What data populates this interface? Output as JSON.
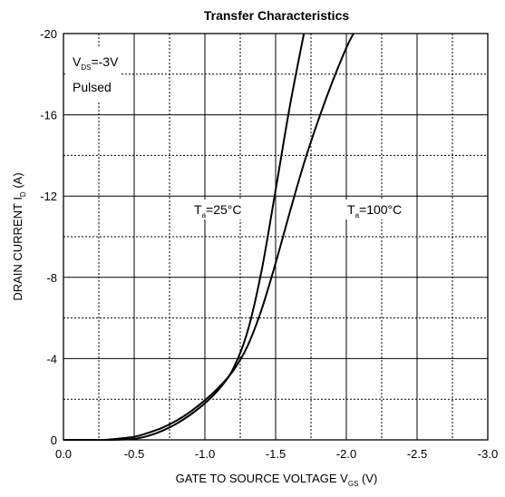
{
  "chart_data": {
    "type": "line",
    "title": "Transfer Characteristics",
    "xlabel": {
      "main": "GATE TO SOURCE VOLTAGE V",
      "sub": "GS",
      "unit": " (V)"
    },
    "ylabel": {
      "main": "DRAIN CURRENT I",
      "sub": "D",
      "unit": " (A)"
    },
    "xlim": [
      0,
      -3.0
    ],
    "ylim": [
      0,
      -20
    ],
    "x_ticks": [
      "0.0",
      "-0.5",
      "-1.0",
      "-1.5",
      "-2.0",
      "-2.5",
      "-3.0"
    ],
    "y_ticks": [
      "0",
      "-4",
      "-8",
      "-12",
      "-16",
      "-20"
    ],
    "grid": "major solid, minor dotted",
    "conditions": {
      "line1_main": "V",
      "line1_sub": "DS",
      "line1_value": "=-3V",
      "line2": "Pulsed"
    },
    "series": [
      {
        "name": "Ta=25°C",
        "label_main": "T",
        "label_sub": "a",
        "label_value": "=25°C",
        "x": [
          -0.35,
          -0.5,
          -0.6,
          -0.7,
          -0.8,
          -0.9,
          -1.0,
          -1.1,
          -1.2,
          -1.3,
          -1.4,
          -1.5,
          -1.6,
          -1.7
        ],
        "y": [
          0,
          -0.05,
          -0.2,
          -0.45,
          -0.8,
          -1.25,
          -1.8,
          -2.5,
          -3.5,
          -5.3,
          -8.3,
          -12.3,
          -16.4,
          -20
        ]
      },
      {
        "name": "Ta=100°C",
        "label_main": "T",
        "label_sub": "a",
        "label_value": "=100°C",
        "x": [
          -0.3,
          -0.5,
          -0.6,
          -0.7,
          -0.8,
          -0.9,
          -1.0,
          -1.1,
          -1.2,
          -1.3,
          -1.4,
          -1.5,
          -1.6,
          -1.7,
          -1.8,
          -1.9,
          -2.0,
          -2.05
        ],
        "y": [
          0,
          -0.15,
          -0.35,
          -0.6,
          -0.95,
          -1.4,
          -1.95,
          -2.6,
          -3.4,
          -4.6,
          -6.4,
          -8.7,
          -11.2,
          -13.6,
          -15.7,
          -17.6,
          -19.3,
          -20
        ]
      }
    ]
  }
}
